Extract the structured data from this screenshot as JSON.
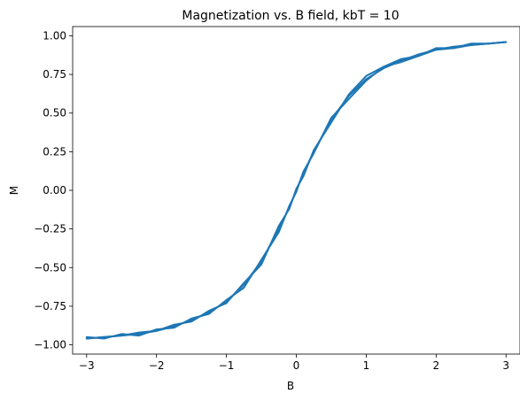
{
  "chart_data": {
    "type": "line",
    "title": "Magnetization vs. B field, kbT = 10",
    "xlabel": "B",
    "ylabel": "M",
    "xlim": [
      -3.2,
      3.2
    ],
    "ylim": [
      -1.06,
      1.06
    ],
    "xticks": [
      -3,
      -2,
      -1,
      0,
      1,
      2,
      3
    ],
    "xtick_labels": [
      "−3",
      "−2",
      "−1",
      "0",
      "1",
      "2",
      "3"
    ],
    "yticks": [
      -1.0,
      -0.75,
      -0.5,
      -0.25,
      0.0,
      0.25,
      0.5,
      0.75,
      1.0
    ],
    "ytick_labels": [
      "−1.00",
      "−0.75",
      "−0.50",
      "−0.25",
      "0.00",
      "0.25",
      "0.50",
      "0.75",
      "1.00"
    ],
    "grid": false,
    "series": [
      {
        "color": "#1f77b4",
        "x": [
          -3.0,
          -2.75,
          -2.5,
          -2.25,
          -2.0,
          -1.75,
          -1.5,
          -1.25,
          -1.0,
          -0.75,
          -0.5,
          -0.25,
          -0.1,
          0.0,
          0.1,
          0.25,
          0.5,
          0.75,
          1.0,
          1.25,
          1.5,
          1.75,
          2.0,
          2.25,
          2.5,
          2.75,
          3.0
        ],
        "y": [
          -0.96,
          -0.95,
          -0.94,
          -0.93,
          -0.91,
          -0.88,
          -0.84,
          -0.79,
          -0.72,
          -0.61,
          -0.46,
          -0.25,
          -0.11,
          0.0,
          0.11,
          0.25,
          0.46,
          0.61,
          0.72,
          0.79,
          0.84,
          0.88,
          0.91,
          0.93,
          0.94,
          0.95,
          0.96
        ]
      },
      {
        "color": "#1f77b4",
        "x": [
          3.0,
          2.75,
          2.5,
          2.25,
          2.0,
          1.75,
          1.5,
          1.25,
          1.0,
          0.75,
          0.5,
          0.25,
          0.1,
          0.0,
          -0.1,
          -0.25,
          -0.5,
          -0.75,
          -1.0,
          -1.25,
          -1.5,
          -1.75,
          -2.0,
          -2.25,
          -2.5,
          -2.75,
          -3.0
        ],
        "y": [
          0.96,
          0.95,
          0.94,
          0.92,
          0.91,
          0.87,
          0.83,
          0.8,
          0.74,
          0.62,
          0.44,
          0.26,
          0.09,
          0.01,
          -0.12,
          -0.23,
          -0.48,
          -0.6,
          -0.73,
          -0.78,
          -0.85,
          -0.87,
          -0.91,
          -0.92,
          -0.94,
          -0.95,
          -0.96
        ]
      },
      {
        "color": "#1f77b4",
        "x": [
          -3.0,
          -2.75,
          -2.5,
          -2.25,
          -2.0,
          -1.75,
          -1.5,
          -1.25,
          -1.0,
          -0.75,
          -0.5,
          -0.25,
          -0.1,
          0.0,
          0.1,
          0.25,
          0.5,
          0.75,
          1.0,
          1.25,
          1.5,
          1.75,
          2.0,
          2.25,
          2.5,
          2.75,
          3.0
        ],
        "y": [
          -0.95,
          -0.96,
          -0.93,
          -0.94,
          -0.9,
          -0.89,
          -0.83,
          -0.8,
          -0.71,
          -0.63,
          -0.45,
          -0.27,
          -0.1,
          -0.01,
          0.12,
          0.24,
          0.47,
          0.59,
          0.71,
          0.8,
          0.85,
          0.87,
          0.92,
          0.92,
          0.95,
          0.95,
          0.96
        ]
      }
    ]
  }
}
